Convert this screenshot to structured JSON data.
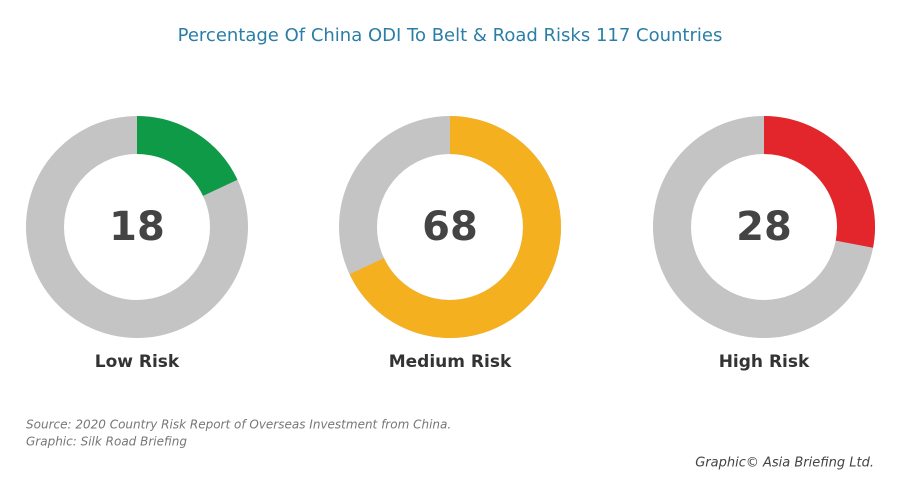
{
  "chart_data": {
    "type": "donut",
    "title": "Percentage Of China ODI To Belt & Road Risks 117 Countries",
    "categories": [
      "Low Risk",
      "Medium Risk",
      "High Risk"
    ],
    "values": [
      18,
      68,
      28
    ],
    "colors": [
      "#0e9a47",
      "#f5b01f",
      "#e3262b"
    ],
    "track_color": "#c4c4c4",
    "ylim": [
      0,
      100
    ],
    "source": "Source: 2020 Country Risk Report of Overseas Investment from China.",
    "graphic": "Graphic: Silk Road Briefing",
    "credit": "Graphic© Asia Briefing Ltd."
  }
}
